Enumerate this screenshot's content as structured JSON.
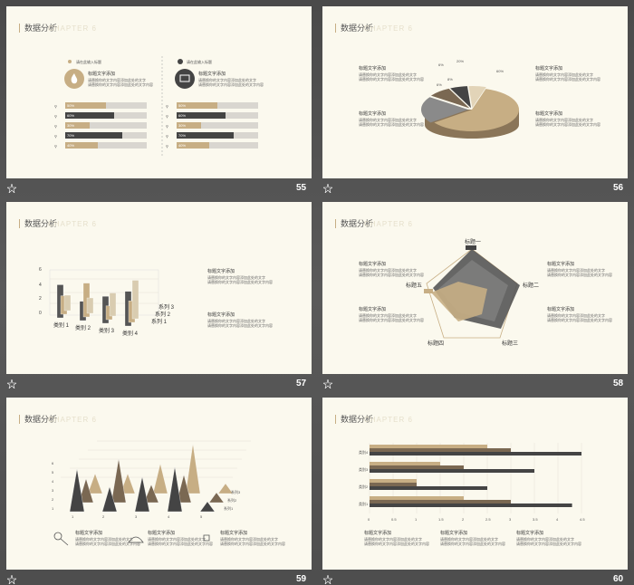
{
  "common": {
    "title": "数据分析",
    "watermark": "CHAPTER 6",
    "text_heading": "标题文字添加",
    "text_line1": "请替换你的文字内容添加此处的文字",
    "text_line2": "请替换你的文字内容添加此处的文字内容"
  },
  "slides": [
    {
      "number": "55",
      "left_label": "请在此输入标题",
      "right_label": "请在此输入标题",
      "left_bars": [
        {
          "label": "50%",
          "value": 0.5
        },
        {
          "label": "60%",
          "value": 0.6
        },
        {
          "label": "30%",
          "value": 0.3
        },
        {
          "label": "70%",
          "value": 0.7
        },
        {
          "label": "40%",
          "value": 0.4
        }
      ],
      "right_bars": [
        {
          "label": "50%",
          "value": 0.5
        },
        {
          "label": "60%",
          "value": 0.6
        },
        {
          "label": "30%",
          "value": 0.3
        },
        {
          "label": "70%",
          "value": 0.7
        },
        {
          "label": "40%",
          "value": 0.4
        }
      ]
    },
    {
      "number": "56",
      "pie": [
        {
          "label": "60%",
          "value": 60,
          "color": "#c7ae84"
        },
        {
          "label": "20%",
          "value": 20,
          "color": "#8a8a8a"
        },
        {
          "label": "8%",
          "value": 8,
          "color": "#7a6852"
        },
        {
          "label": "6%",
          "value": 6,
          "color": "#444"
        },
        {
          "label": "6%",
          "value": 6,
          "color": "#e2d4b8"
        }
      ]
    },
    {
      "number": "57",
      "yticks": [
        "6",
        "4",
        "2",
        "0"
      ],
      "categories": [
        "类别 1",
        "类别 2",
        "类别 3",
        "类别 4"
      ],
      "series": [
        "系列 3",
        "系列 2",
        "系列 1"
      ]
    },
    {
      "number": "58",
      "radar_labels": [
        "标题一",
        "标题二",
        "标题三",
        "标题四",
        "标题五"
      ]
    },
    {
      "number": "59",
      "pyramid_x": [
        "1",
        "2",
        "3",
        "4",
        "5"
      ],
      "pyramid_y": [
        "6",
        "5",
        "4",
        "3",
        "2",
        "1"
      ],
      "series": [
        "系列3",
        "系列2",
        "系列1"
      ]
    },
    {
      "number": "60",
      "bar_categories": [
        "类别4",
        "类别3",
        "类别2",
        "类别1"
      ],
      "xticks": [
        "0",
        "0.5",
        "1",
        "1.5",
        "2",
        "2.5",
        "3",
        "3.5",
        "4",
        "4.5"
      ]
    }
  ]
}
